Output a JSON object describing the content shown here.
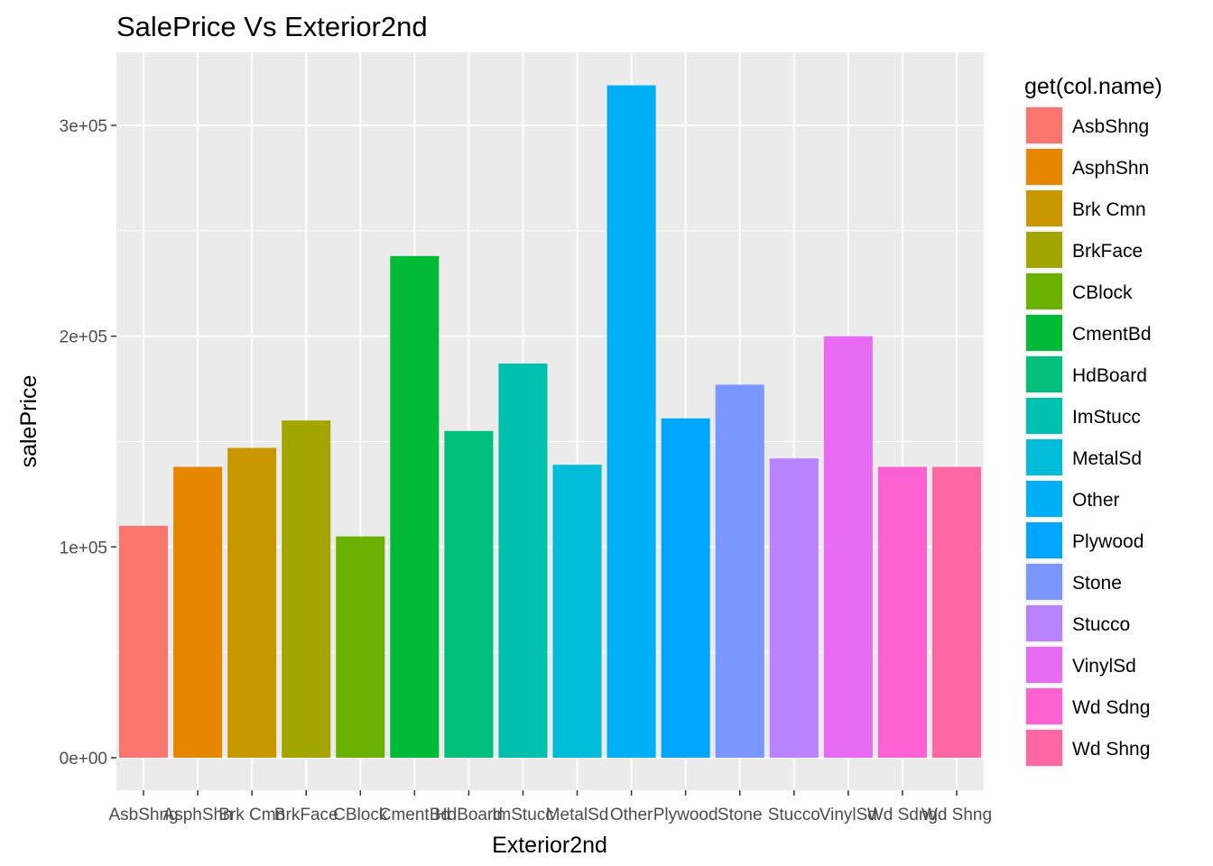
{
  "chart_data": {
    "type": "bar",
    "title": "SalePrice Vs Exterior2nd",
    "xlabel": "Exterior2nd",
    "ylabel": "salePrice",
    "categories": [
      "AsbShng",
      "AsphShn",
      "Brk Cmn",
      "BrkFace",
      "CBlock",
      "CmentBd",
      "HdBoard",
      "ImStucc",
      "MetalSd",
      "Other",
      "Plywood",
      "Stone",
      "Stucco",
      "VinylSd",
      "Wd Sdng",
      "Wd Shng"
    ],
    "values": [
      110000,
      138000,
      147000,
      160000,
      105000,
      238000,
      155000,
      187000,
      139000,
      319000,
      161000,
      177000,
      142000,
      200000,
      138000,
      138000
    ],
    "ylim": [
      -15000,
      330000
    ],
    "yticks": [
      0,
      100000,
      200000,
      300000
    ],
    "ytick_labels": [
      "0e+00",
      "1e+05",
      "2e+05",
      "3e+05"
    ],
    "grid": true,
    "legend_title": "get(col.name)",
    "legend_position": "right",
    "colors": [
      "#F8766D",
      "#E58700",
      "#C99800",
      "#A3A500",
      "#6BB100",
      "#00BA38",
      "#00BF7D",
      "#00C0AF",
      "#00BCD8",
      "#00B0F6",
      "#00A5FF",
      "#7997FF",
      "#B983FF",
      "#E76BF3",
      "#FD61D1",
      "#FF67A4"
    ]
  }
}
